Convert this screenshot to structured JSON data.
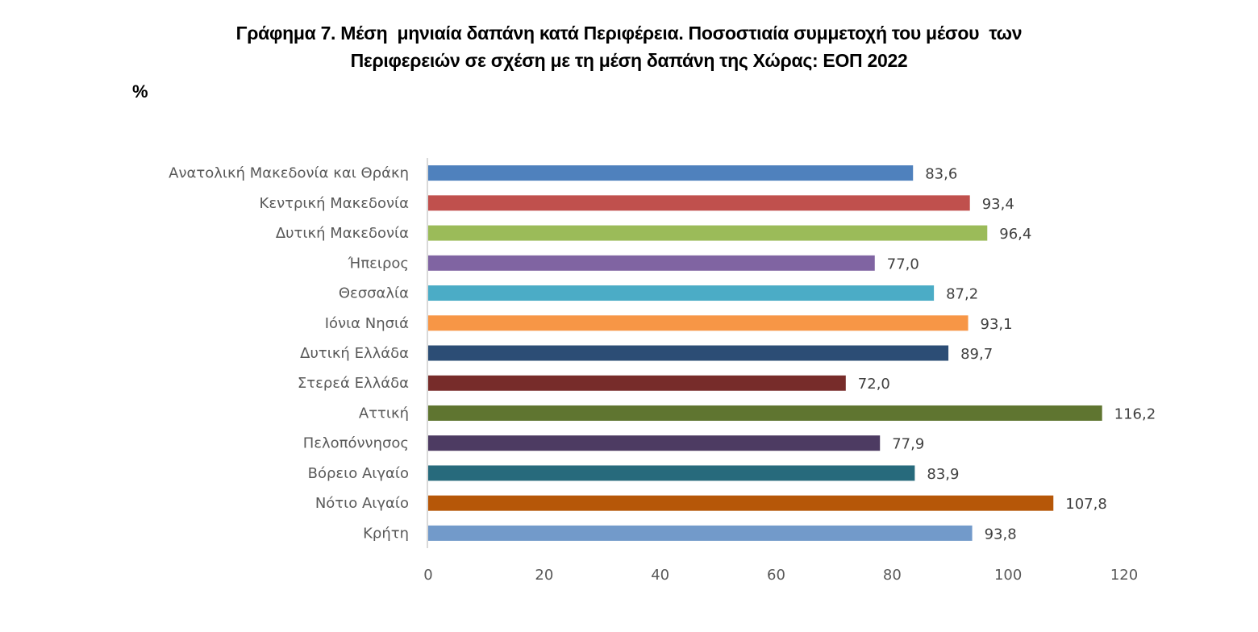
{
  "chart_data": {
    "type": "bar",
    "orientation": "horizontal",
    "title": "Γράφημα 7. Μέση  μηνιαία δαπάνη κατά Περιφέρεια. Ποσοστιαία συμμετοχή του μέσου  των Περιφερειών σε σχέση με τη μέση δαπάνη της Χώρας: ΕΟΠ 2022",
    "title_lines": [
      "Γράφημα 7. Μέση  μηνιαία δαπάνη κατά Περιφέρεια. Ποσοστιαία συμμετοχή του μέσου  των",
      "Περιφερειών σε σχέση με τη μέση δαπάνη της Χώρας: ΕΟΠ 2022"
    ],
    "unit_label": "%",
    "xlabel": "",
    "ylabel": "",
    "xlim": [
      0,
      120
    ],
    "xticks": [
      0,
      20,
      40,
      60,
      80,
      100,
      120
    ],
    "xtick_labels": [
      "0",
      "20",
      "40",
      "60",
      "80",
      "100",
      "120"
    ],
    "grid": false,
    "legend": "none",
    "categories": [
      "Ανατολική Μακεδονία και Θράκη",
      "Κεντρική Μακεδονία",
      "Δυτική Μακεδονία",
      "Ήπειρος",
      "Θεσσαλία",
      "Ιόνια Νησιά",
      "Δυτική Ελλάδα",
      "Στερεά Ελλάδα",
      "Αττική",
      "Πελοπόννησος",
      "Βόρειο Αιγαίο",
      "Νότιο Αιγαίο",
      "Κρήτη"
    ],
    "values": [
      83.6,
      93.4,
      96.4,
      77.0,
      87.2,
      93.1,
      89.7,
      72.0,
      116.2,
      77.9,
      83.9,
      107.8,
      93.8
    ],
    "value_labels": [
      "83,6",
      "93,4",
      "96,4",
      "77,0",
      "87,2",
      "93,1",
      "89,7",
      "72,0",
      "116,2",
      "77,9",
      "83,9",
      "107,8",
      "93,8"
    ],
    "colors": [
      "#4f81bd",
      "#c0504d",
      "#9bbb59",
      "#8064a2",
      "#4bacc6",
      "#f79646",
      "#2c4d75",
      "#772c2a",
      "#5f7530",
      "#4d3b62",
      "#276a7c",
      "#b65708",
      "#729aca"
    ]
  }
}
